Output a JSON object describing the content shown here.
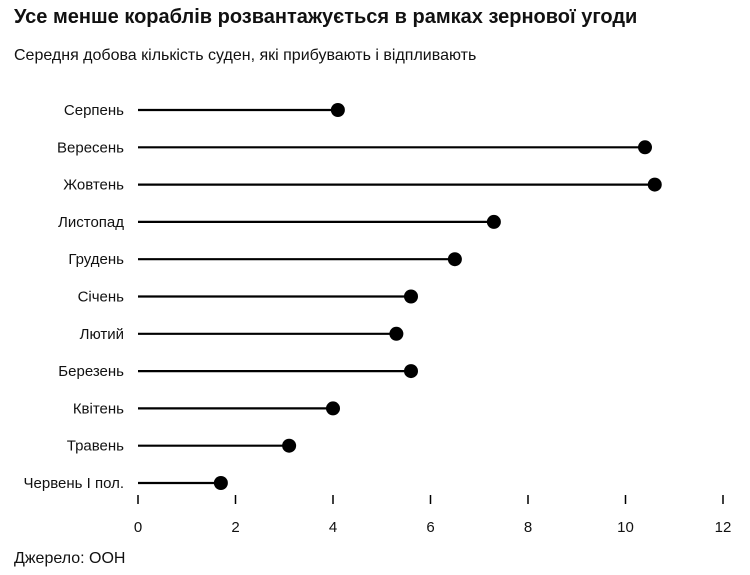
{
  "title": "Усе менше кораблів розвантажується в рамках зернової угоди",
  "subtitle": "Середня добова кількість суден, які прибувають і відпливають",
  "source": "Джерело: ООН",
  "chart_data": {
    "type": "lollipop",
    "title": "Усе менше кораблів розвантажується в рамках зернової угоди",
    "subtitle": "Середня добова кількість суден, які прибувають і відпливають",
    "categories": [
      "Серпень",
      "Вересень",
      "Жовтень",
      "Листопад",
      "Грудень",
      "Січень",
      "Лютий",
      "Березень",
      "Квітень",
      "Травень",
      "Червень I пол."
    ],
    "values": [
      4.1,
      10.4,
      10.6,
      7.3,
      6.5,
      5.6,
      5.3,
      5.6,
      4.0,
      3.1,
      1.7
    ],
    "xlim": [
      0,
      12
    ],
    "xticks": [
      0,
      2,
      4,
      6,
      8,
      10,
      12
    ],
    "xlabel": "",
    "ylabel": "",
    "grid": false,
    "colors": {
      "stem": "#000000",
      "dot": "#000000",
      "text": "#111111"
    }
  }
}
